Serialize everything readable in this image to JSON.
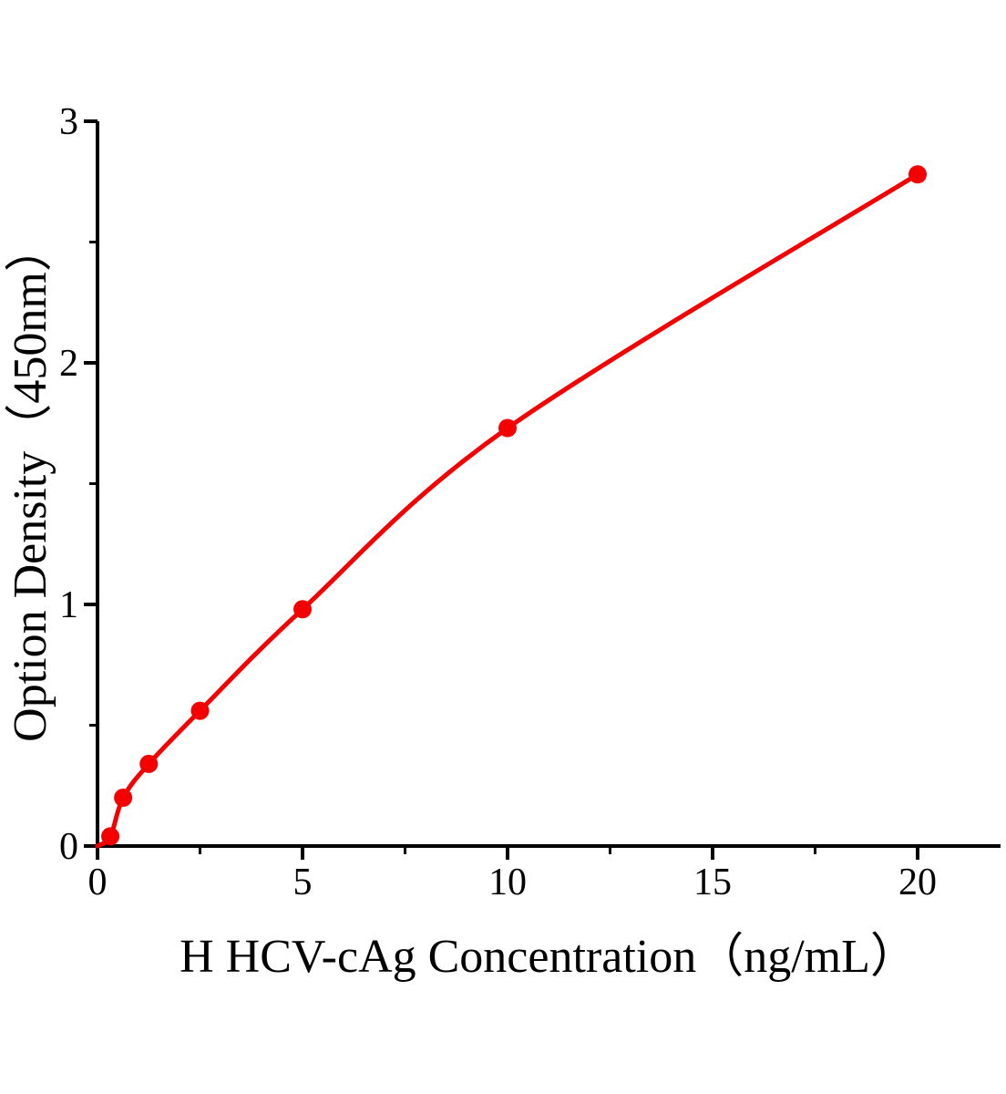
{
  "chart_data": {
    "type": "scatter",
    "subtype": "standard-curve-with-smooth-line",
    "title": "",
    "xlabel": "H HCV-cAg Concentration（ng/mL）",
    "ylabel": "Option Density（450nm）",
    "x": [
      0.3125,
      0.625,
      1.25,
      2.5,
      5,
      10,
      20
    ],
    "y": [
      0.04,
      0.2,
      0.34,
      0.56,
      0.98,
      1.73,
      2.78
    ],
    "curve_start": [
      0,
      0
    ],
    "xlim": [
      0,
      22
    ],
    "ylim": [
      0,
      3
    ],
    "x_major_ticks": [
      0,
      5,
      10,
      15,
      20
    ],
    "x_tick_labels": [
      "0",
      "5",
      "10",
      "15",
      "20"
    ],
    "x_minor_ticks": [
      2.5,
      7.5,
      12.5,
      17.5
    ],
    "y_major_ticks": [
      0,
      1,
      2,
      3
    ],
    "y_tick_labels": [
      "0",
      "1",
      "2",
      "3"
    ],
    "y_minor_ticks": [
      0.5,
      1.5,
      2.5
    ],
    "grid": false,
    "legend": false,
    "series_color": "#f40000",
    "axis_color": "#000000",
    "background_color": "#ffffff"
  }
}
